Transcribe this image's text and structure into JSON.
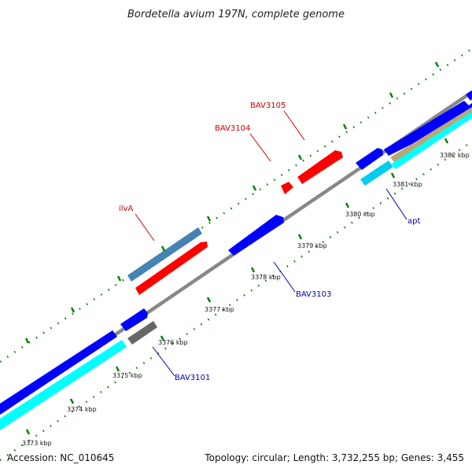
{
  "title": "Bordetella avium 197N, complete genome",
  "footer": {
    "accession": "Accession: NC_010645",
    "summary": "Topology: circular; Length: 3,732,255 bp; Genes: 3,455"
  },
  "ticks": [
    "3373 kbp",
    "3374 kbp",
    "3375 kbp",
    "3376 kbp",
    "3377 kbp",
    "3378 kbp",
    "3379 kbp",
    "3380 kbp",
    "3381 kbp",
    "3382 kbp"
  ],
  "gene_labels": {
    "ilvA": "ilvA",
    "BAV3104": "BAV3104",
    "BAV3105": "BAV3105",
    "BAV3103": "BAV3103",
    "BAV3101": "BAV3101",
    "apt": "apt"
  },
  "colors": {
    "forward_cds": "#ff0000",
    "reverse_cds": "#0000ff",
    "reverse_rna": "#00ffff",
    "steelblue_feature": "#4682b4",
    "gray_feature": "#666666",
    "tan_feature": "#b8a878",
    "backbone": "#888888",
    "tick_green": "#008000",
    "forward_label": "#cc0000",
    "reverse_label": "#0000aa"
  }
}
